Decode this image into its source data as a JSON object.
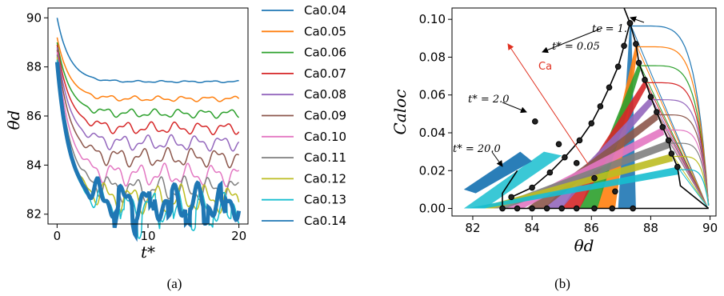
{
  "colors": [
    "#1f77b4",
    "#ff7f0e",
    "#2ca02c",
    "#d62728",
    "#9467bd",
    "#8c564b",
    "#e377c2",
    "#7f7f7f",
    "#bcbd22",
    "#17becf",
    "#1f77b4"
  ],
  "captions": {
    "a": "(a)",
    "b": "(b)"
  },
  "chart_data": [
    {
      "panel": "a",
      "type": "line",
      "xlabel": "t*",
      "ylabel": "θd",
      "xlim": [
        -1,
        21
      ],
      "ylim": [
        81.6,
        90.4
      ],
      "xticks": [
        "0",
        "10",
        "20"
      ],
      "yticks": [
        "82",
        "84",
        "86",
        "88",
        "90"
      ],
      "grid": false,
      "legend_position": "outside-right",
      "series": [
        {
          "name": "Ca0.04",
          "start": 90.0,
          "steady": 87.4
        },
        {
          "name": "Ca0.05",
          "start": 89.2,
          "steady": 86.7
        },
        {
          "name": "Ca0.06",
          "start": 89.0,
          "steady": 86.1
        },
        {
          "name": "Ca0.07",
          "start": 88.9,
          "steady": 85.5
        },
        {
          "name": "Ca0.08",
          "start": 88.8,
          "steady": 84.9
        },
        {
          "name": "Ca0.09",
          "start": 88.7,
          "steady": 84.3
        },
        {
          "name": "Ca0.10",
          "start": 88.6,
          "steady": 83.6
        },
        {
          "name": "Ca0.11",
          "start": 88.5,
          "steady": 83.0
        },
        {
          "name": "Ca0.12",
          "start": 88.4,
          "steady": 82.6
        },
        {
          "name": "Ca0.13",
          "start": 88.3,
          "steady": 82.3
        },
        {
          "name": "Ca0.14",
          "start": 88.2,
          "steady": 82.5
        }
      ]
    },
    {
      "panel": "b",
      "type": "scatter",
      "xlabel": "θd",
      "ylabel": "Caloc",
      "xlim": [
        81.3,
        90.2
      ],
      "ylim": [
        -0.004,
        0.106
      ],
      "xticks": [
        "82",
        "84",
        "86",
        "88",
        "90"
      ],
      "yticks": [
        "0.00",
        "0.02",
        "0.04",
        "0.06",
        "0.08",
        "0.10"
      ],
      "grid": false,
      "series_final_theta": [
        87.4,
        86.7,
        86.1,
        85.5,
        84.9,
        84.3,
        83.6,
        83.0,
        82.6,
        82.3,
        82.5
      ],
      "peak_points": [
        [
          87.3,
          0.098
        ],
        [
          87.5,
          0.087
        ],
        [
          87.6,
          0.077
        ],
        [
          87.8,
          0.068
        ],
        [
          88.0,
          0.059
        ],
        [
          88.2,
          0.051
        ],
        [
          88.4,
          0.043
        ],
        [
          88.6,
          0.036
        ],
        [
          88.7,
          0.029
        ],
        [
          88.9,
          0.022
        ]
      ],
      "t1_points": [
        [
          87.3,
          0.098
        ],
        [
          87.1,
          0.086
        ],
        [
          86.9,
          0.075
        ],
        [
          86.6,
          0.064
        ],
        [
          86.3,
          0.054
        ],
        [
          86.0,
          0.045
        ],
        [
          85.6,
          0.036
        ],
        [
          85.1,
          0.027
        ],
        [
          84.6,
          0.019
        ],
        [
          84.0,
          0.011
        ],
        [
          83.3,
          0.006
        ]
      ],
      "t20_points": [
        [
          83.0,
          0.0
        ],
        [
          83.5,
          0.0
        ],
        [
          84.0,
          0.0
        ],
        [
          84.5,
          0.0
        ],
        [
          85.0,
          0.0
        ],
        [
          85.5,
          0.0
        ],
        [
          86.1,
          0.0
        ],
        [
          86.7,
          0.0
        ],
        [
          87.4,
          0.0
        ]
      ],
      "t2_points": [
        [
          84.1,
          0.046
        ],
        [
          84.9,
          0.034
        ],
        [
          85.5,
          0.024
        ],
        [
          86.1,
          0.016
        ],
        [
          86.8,
          0.009
        ]
      ],
      "annotations": {
        "t_eps": "tϵ = 1.",
        "t_005": "t* = 0.05",
        "t_2": "t* = 2.0",
        "t_20": "t* = 20.0",
        "ca_arrow": "Ca"
      }
    }
  ]
}
